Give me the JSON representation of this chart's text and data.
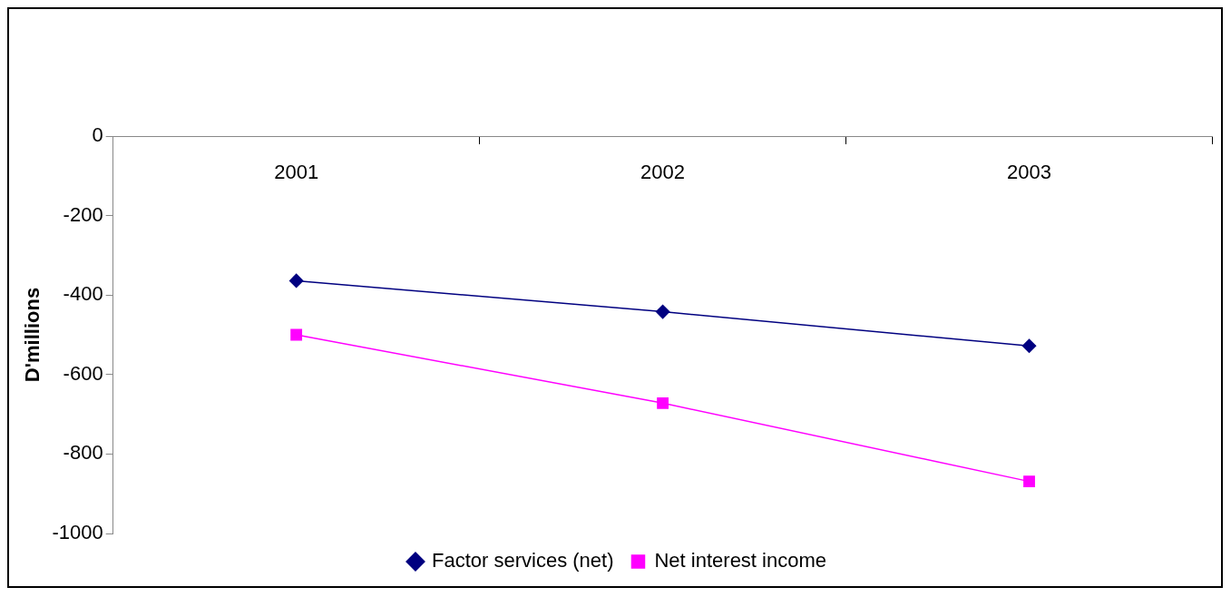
{
  "chart_data": {
    "type": "line",
    "ylabel": "D'millions",
    "categories": [
      "2001",
      "2002",
      "2003"
    ],
    "series": [
      {
        "name": "Factor services (net)",
        "color": "#000080",
        "values": [
          -364,
          -442,
          -528
        ],
        "marker": "diamond"
      },
      {
        "name": "Net interest income",
        "color": "#ff00ff",
        "values": [
          -500,
          -672,
          -869
        ],
        "marker": "square"
      }
    ],
    "ylim": [
      -1000,
      0
    ],
    "yticks": [
      0,
      -200,
      -400,
      -600,
      -800,
      -1000
    ],
    "grid": false,
    "legend": "bottom"
  }
}
